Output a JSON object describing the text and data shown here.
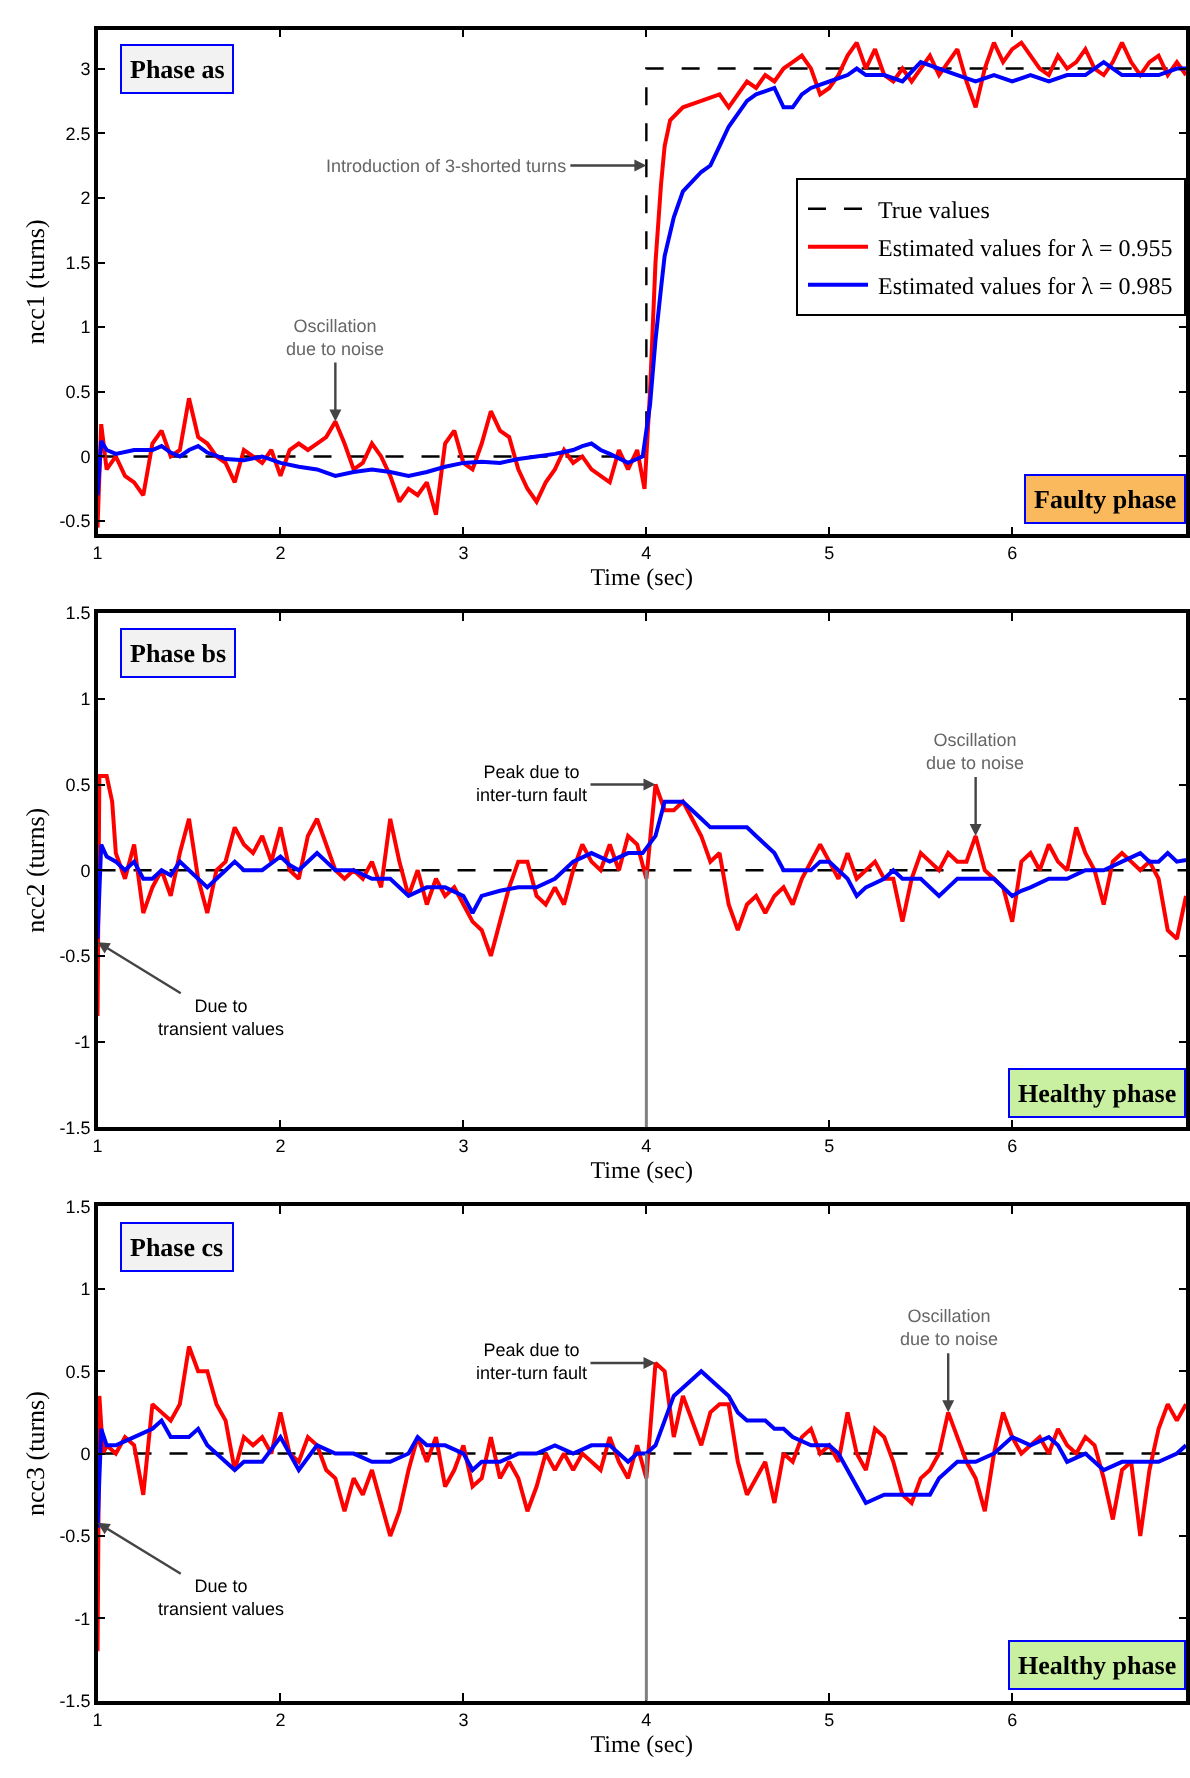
{
  "chart_data": [
    {
      "type": "line",
      "xlabel": "Time (sec)",
      "ylabel": "ncc1 (turns)",
      "xlim": [
        1,
        6.95
      ],
      "ylim": [
        -0.6,
        3.3
      ],
      "xticks": [
        1,
        2,
        3,
        4,
        5,
        6
      ],
      "yticks": [
        -0.5,
        0,
        0.5,
        1,
        1.5,
        2,
        2.5,
        3
      ],
      "legend": "right",
      "annotations": [
        "Phase as",
        "Faulty phase",
        {
          "text": "Introduction of 3-shorted turns",
          "x": 4,
          "y": 2.25
        },
        {
          "text": "Oscillation\ndue to noise",
          "x": 2.3,
          "y": 0.27
        }
      ],
      "series": [
        {
          "name": "True values",
          "color": "#000000",
          "line_style": "dashed",
          "x": [
            1,
            4,
            4,
            6.95
          ],
          "values": [
            0,
            0,
            3,
            3
          ]
        },
        {
          "name": "Estimated values for λ = 0.955",
          "color": "#ff0000",
          "line_style": "solid",
          "x": [
            1.0,
            1.02,
            1.05,
            1.1,
            1.15,
            1.2,
            1.25,
            1.3,
            1.35,
            1.4,
            1.45,
            1.5,
            1.55,
            1.6,
            1.65,
            1.7,
            1.75,
            1.8,
            1.85,
            1.9,
            1.95,
            2.0,
            2.05,
            2.1,
            2.15,
            2.2,
            2.25,
            2.3,
            2.35,
            2.4,
            2.45,
            2.5,
            2.55,
            2.6,
            2.65,
            2.7,
            2.75,
            2.8,
            2.85,
            2.9,
            2.95,
            3.0,
            3.05,
            3.1,
            3.15,
            3.2,
            3.25,
            3.3,
            3.35,
            3.4,
            3.45,
            3.5,
            3.55,
            3.6,
            3.65,
            3.7,
            3.75,
            3.8,
            3.85,
            3.9,
            3.95,
            3.99,
            4.02,
            4.05,
            4.08,
            4.1,
            4.13,
            4.2,
            4.3,
            4.4,
            4.45,
            4.5,
            4.55,
            4.6,
            4.65,
            4.7,
            4.75,
            4.8,
            4.85,
            4.9,
            4.95,
            5.0,
            5.05,
            5.1,
            5.15,
            5.2,
            5.25,
            5.3,
            5.35,
            5.4,
            5.45,
            5.5,
            5.55,
            5.6,
            5.65,
            5.7,
            5.75,
            5.8,
            5.85,
            5.9,
            5.95,
            6.0,
            6.05,
            6.1,
            6.15,
            6.2,
            6.25,
            6.3,
            6.35,
            6.4,
            6.45,
            6.5,
            6.55,
            6.6,
            6.65,
            6.7,
            6.75,
            6.8,
            6.85,
            6.9,
            6.95
          ],
          "values": [
            -0.55,
            0.25,
            -0.1,
            0.0,
            -0.15,
            -0.2,
            -0.3,
            0.1,
            0.2,
            0.0,
            0.05,
            0.45,
            0.15,
            0.1,
            0.0,
            -0.05,
            -0.2,
            0.05,
            0.0,
            -0.05,
            0.05,
            -0.15,
            0.05,
            0.1,
            0.05,
            0.1,
            0.15,
            0.27,
            0.1,
            -0.1,
            -0.05,
            0.1,
            0.0,
            -0.15,
            -0.35,
            -0.25,
            -0.3,
            -0.2,
            -0.45,
            0.1,
            0.2,
            -0.05,
            -0.1,
            0.1,
            0.35,
            0.2,
            0.15,
            -0.1,
            -0.25,
            -0.35,
            -0.2,
            -0.1,
            0.05,
            -0.05,
            0.0,
            -0.1,
            -0.15,
            -0.2,
            0.05,
            -0.1,
            0.05,
            -0.25,
            0.5,
            1.5,
            2.1,
            2.4,
            2.6,
            2.7,
            2.75,
            2.8,
            2.7,
            2.8,
            2.9,
            2.85,
            2.95,
            2.9,
            3.0,
            3.05,
            3.1,
            3.0,
            2.8,
            2.85,
            2.95,
            3.1,
            3.2,
            3.0,
            3.15,
            2.95,
            2.9,
            3.0,
            2.9,
            3.0,
            3.1,
            2.95,
            3.05,
            3.15,
            2.9,
            2.7,
            3.0,
            3.2,
            3.05,
            3.15,
            3.2,
            3.1,
            3.0,
            2.95,
            3.1,
            3.0,
            3.05,
            3.15,
            3.0,
            2.95,
            3.05,
            3.2,
            3.05,
            2.95,
            3.05,
            3.1,
            2.95,
            3.05,
            2.95
          ]
        },
        {
          "name": "Estimated values for λ = 0.985",
          "color": "#0000ff",
          "line_style": "solid",
          "x": [
            1.0,
            1.02,
            1.05,
            1.1,
            1.2,
            1.3,
            1.35,
            1.4,
            1.45,
            1.5,
            1.55,
            1.6,
            1.7,
            1.8,
            1.9,
            2.0,
            2.1,
            2.2,
            2.3,
            2.4,
            2.5,
            2.6,
            2.7,
            2.8,
            2.9,
            3.0,
            3.1,
            3.2,
            3.3,
            3.4,
            3.5,
            3.6,
            3.65,
            3.7,
            3.75,
            3.8,
            3.9,
            3.98,
            4.02,
            4.05,
            4.08,
            4.1,
            4.15,
            4.2,
            4.3,
            4.35,
            4.4,
            4.45,
            4.5,
            4.55,
            4.6,
            4.7,
            4.75,
            4.8,
            4.85,
            4.9,
            5.0,
            5.1,
            5.15,
            5.2,
            5.3,
            5.4,
            5.5,
            5.6,
            5.7,
            5.8,
            5.9,
            6.0,
            6.1,
            6.2,
            6.3,
            6.4,
            6.5,
            6.6,
            6.7,
            6.8,
            6.9,
            6.95
          ],
          "values": [
            -0.3,
            0.12,
            0.05,
            0.02,
            0.05,
            0.05,
            0.08,
            0.03,
            0.0,
            0.05,
            0.08,
            0.03,
            -0.02,
            -0.03,
            0.0,
            -0.05,
            -0.08,
            -0.1,
            -0.15,
            -0.12,
            -0.1,
            -0.12,
            -0.15,
            -0.12,
            -0.08,
            -0.05,
            -0.04,
            -0.05,
            -0.02,
            0.0,
            0.02,
            0.05,
            0.08,
            0.1,
            0.05,
            0.02,
            -0.05,
            0.0,
            0.4,
            0.9,
            1.3,
            1.55,
            1.85,
            2.05,
            2.2,
            2.25,
            2.4,
            2.55,
            2.65,
            2.75,
            2.8,
            2.85,
            2.7,
            2.7,
            2.8,
            2.85,
            2.9,
            2.95,
            3.0,
            2.95,
            2.95,
            2.9,
            3.05,
            3.0,
            2.95,
            2.9,
            2.95,
            2.9,
            2.95,
            2.9,
            2.95,
            2.95,
            3.05,
            2.95,
            2.95,
            2.95,
            3.0,
            3.0
          ]
        }
      ]
    },
    {
      "type": "line",
      "xlabel": "Time (sec)",
      "ylabel": "ncc2 (turns)",
      "xlim": [
        1,
        6.95
      ],
      "ylim": [
        -1.5,
        1.5
      ],
      "xticks": [
        1,
        2,
        3,
        4,
        5,
        6
      ],
      "yticks": [
        -1.5,
        -1,
        -0.5,
        0,
        0.5,
        1,
        1.5
      ],
      "legend": false,
      "annotations": [
        "Phase bs",
        "Healthy phase",
        {
          "text": "Peak due to\ninter-turn fault",
          "x": 4.05,
          "y": 0.5
        },
        {
          "text": "Oscillation\ndue to noise",
          "x": 5.8,
          "y": 0.2
        },
        {
          "text": "Due to\ntransient values",
          "x": 1,
          "y": -0.42
        }
      ],
      "ref_lines": [
        {
          "axis": "x",
          "value": 4,
          "color": "#808080"
        }
      ],
      "series": [
        {
          "color": "#000000",
          "line_style": "dashed",
          "x": [
            1,
            6.95
          ],
          "values": [
            0,
            0
          ]
        },
        {
          "color": "#ff0000",
          "line_style": "solid",
          "x": [
            1.0,
            1.01,
            1.05,
            1.08,
            1.1,
            1.15,
            1.2,
            1.25,
            1.3,
            1.35,
            1.4,
            1.45,
            1.5,
            1.55,
            1.6,
            1.65,
            1.7,
            1.75,
            1.8,
            1.85,
            1.9,
            1.95,
            2.0,
            2.05,
            2.1,
            2.15,
            2.2,
            2.25,
            2.3,
            2.35,
            2.4,
            2.45,
            2.5,
            2.55,
            2.6,
            2.65,
            2.7,
            2.75,
            2.8,
            2.85,
            2.9,
            2.95,
            3.0,
            3.05,
            3.1,
            3.15,
            3.2,
            3.25,
            3.3,
            3.35,
            3.4,
            3.45,
            3.5,
            3.55,
            3.6,
            3.65,
            3.7,
            3.75,
            3.8,
            3.85,
            3.9,
            3.95,
            4.0,
            4.05,
            4.1,
            4.15,
            4.2,
            4.25,
            4.3,
            4.35,
            4.4,
            4.45,
            4.5,
            4.55,
            4.6,
            4.65,
            4.7,
            4.75,
            4.8,
            4.85,
            4.9,
            4.95,
            5.0,
            5.05,
            5.1,
            5.15,
            5.2,
            5.25,
            5.3,
            5.35,
            5.4,
            5.45,
            5.5,
            5.55,
            5.6,
            5.65,
            5.7,
            5.75,
            5.8,
            5.85,
            5.9,
            5.95,
            6.0,
            6.05,
            6.1,
            6.15,
            6.2,
            6.25,
            6.3,
            6.35,
            6.4,
            6.45,
            6.5,
            6.55,
            6.6,
            6.65,
            6.7,
            6.75,
            6.8,
            6.85,
            6.9,
            6.95
          ],
          "values": [
            -0.85,
            0.55,
            0.55,
            0.4,
            0.1,
            -0.05,
            0.15,
            -0.25,
            -0.1,
            0.0,
            -0.15,
            0.1,
            0.3,
            -0.05,
            -0.25,
            0.0,
            0.05,
            0.25,
            0.15,
            0.1,
            0.2,
            0.05,
            0.25,
            0.0,
            -0.05,
            0.2,
            0.3,
            0.15,
            0.0,
            -0.05,
            0.0,
            -0.05,
            0.05,
            -0.1,
            0.3,
            0.05,
            -0.15,
            0.0,
            -0.2,
            -0.05,
            -0.15,
            -0.1,
            -0.2,
            -0.3,
            -0.35,
            -0.5,
            -0.3,
            -0.1,
            0.05,
            0.05,
            -0.15,
            -0.2,
            -0.1,
            -0.2,
            0.0,
            0.15,
            0.05,
            0.0,
            0.15,
            0.0,
            0.2,
            0.15,
            -0.05,
            0.5,
            0.35,
            0.35,
            0.4,
            0.3,
            0.2,
            0.05,
            0.1,
            -0.2,
            -0.35,
            -0.2,
            -0.15,
            -0.25,
            -0.15,
            -0.1,
            -0.2,
            -0.05,
            0.05,
            0.15,
            0.05,
            -0.05,
            0.1,
            -0.05,
            0.0,
            0.05,
            -0.05,
            -0.05,
            -0.3,
            -0.05,
            0.1,
            0.05,
            0.0,
            0.1,
            0.05,
            0.05,
            0.2,
            0.0,
            -0.05,
            -0.1,
            -0.3,
            0.05,
            0.1,
            0.0,
            0.15,
            0.05,
            0.0,
            0.25,
            0.1,
            0.0,
            -0.2,
            0.05,
            0.1,
            0.05,
            0.0,
            0.05,
            -0.05,
            -0.35,
            -0.4,
            -0.15
          ]
        },
        {
          "color": "#0000ff",
          "line_style": "solid",
          "x": [
            1.0,
            1.02,
            1.05,
            1.1,
            1.15,
            1.2,
            1.25,
            1.3,
            1.35,
            1.4,
            1.45,
            1.5,
            1.55,
            1.6,
            1.65,
            1.7,
            1.75,
            1.8,
            1.9,
            2.0,
            2.05,
            2.1,
            2.2,
            2.25,
            2.3,
            2.4,
            2.5,
            2.6,
            2.7,
            2.8,
            2.9,
            3.0,
            3.05,
            3.1,
            3.2,
            3.3,
            3.4,
            3.5,
            3.55,
            3.6,
            3.7,
            3.8,
            3.9,
            3.98,
            4.05,
            4.1,
            4.15,
            4.2,
            4.25,
            4.3,
            4.35,
            4.4,
            4.45,
            4.5,
            4.55,
            4.6,
            4.65,
            4.7,
            4.75,
            4.8,
            4.9,
            4.95,
            5.0,
            5.1,
            5.15,
            5.2,
            5.3,
            5.35,
            5.4,
            5.5,
            5.6,
            5.65,
            5.7,
            5.8,
            5.9,
            6.0,
            6.05,
            6.1,
            6.2,
            6.3,
            6.4,
            6.5,
            6.6,
            6.7,
            6.75,
            6.8,
            6.85,
            6.9,
            6.95
          ],
          "values": [
            -0.4,
            0.15,
            0.08,
            0.05,
            0.0,
            0.05,
            -0.05,
            -0.05,
            0.0,
            -0.03,
            0.05,
            0.0,
            -0.05,
            -0.1,
            -0.05,
            0.0,
            0.05,
            0.0,
            0.0,
            0.08,
            0.03,
            0.0,
            0.1,
            0.05,
            0.0,
            0.0,
            -0.05,
            -0.05,
            -0.15,
            -0.1,
            -0.1,
            -0.15,
            -0.25,
            -0.15,
            -0.12,
            -0.1,
            -0.1,
            -0.05,
            0.0,
            0.05,
            0.1,
            0.05,
            0.1,
            0.1,
            0.2,
            0.4,
            0.4,
            0.4,
            0.35,
            0.3,
            0.25,
            0.25,
            0.25,
            0.25,
            0.25,
            0.2,
            0.15,
            0.1,
            0.0,
            0.0,
            0.0,
            0.05,
            0.05,
            -0.05,
            -0.15,
            -0.1,
            -0.05,
            0.0,
            -0.05,
            -0.05,
            -0.15,
            -0.1,
            -0.05,
            -0.05,
            -0.05,
            -0.15,
            -0.12,
            -0.1,
            -0.05,
            -0.05,
            0.0,
            0.0,
            0.05,
            0.1,
            0.05,
            0.05,
            0.1,
            0.05,
            0.06
          ]
        }
      ]
    },
    {
      "type": "line",
      "xlabel": "Time (sec)",
      "ylabel": "ncc3 (turns)",
      "xlim": [
        1,
        6.95
      ],
      "ylim": [
        -1.5,
        1.5
      ],
      "xticks": [
        1,
        2,
        3,
        4,
        5,
        6
      ],
      "yticks": [
        -1.5,
        -1,
        -0.5,
        0,
        0.5,
        1,
        1.5
      ],
      "legend": false,
      "annotations": [
        "Phase cs",
        "Healthy phase",
        {
          "text": "Peak due to\ninter-turn fault",
          "x": 4.05,
          "y": 0.55
        },
        {
          "text": "Oscillation\ndue to noise",
          "x": 5.65,
          "y": 0.25
        },
        {
          "text": "Due to\ntransient values",
          "x": 1,
          "y": -0.42
        }
      ],
      "ref_lines": [
        {
          "axis": "x",
          "value": 4,
          "color": "#808080"
        }
      ],
      "series": [
        {
          "color": "#000000",
          "line_style": "dashed",
          "x": [
            1,
            6.95
          ],
          "values": [
            0,
            0
          ]
        },
        {
          "color": "#ff0000",
          "line_style": "solid",
          "x": [
            1.0,
            1.01,
            1.03,
            1.05,
            1.1,
            1.15,
            1.2,
            1.25,
            1.3,
            1.35,
            1.4,
            1.45,
            1.5,
            1.55,
            1.6,
            1.65,
            1.7,
            1.75,
            1.8,
            1.85,
            1.9,
            1.95,
            2.0,
            2.05,
            2.1,
            2.15,
            2.2,
            2.25,
            2.3,
            2.35,
            2.4,
            2.45,
            2.5,
            2.55,
            2.6,
            2.65,
            2.7,
            2.75,
            2.8,
            2.85,
            2.9,
            2.95,
            3.0,
            3.05,
            3.1,
            3.15,
            3.2,
            3.25,
            3.3,
            3.35,
            3.4,
            3.45,
            3.5,
            3.55,
            3.6,
            3.65,
            3.7,
            3.75,
            3.8,
            3.85,
            3.9,
            3.95,
            4.0,
            4.05,
            4.1,
            4.15,
            4.2,
            4.25,
            4.3,
            4.35,
            4.4,
            4.45,
            4.5,
            4.55,
            4.6,
            4.65,
            4.7,
            4.75,
            4.8,
            4.85,
            4.9,
            4.95,
            5.0,
            5.05,
            5.1,
            5.15,
            5.2,
            5.25,
            5.3,
            5.35,
            5.4,
            5.45,
            5.5,
            5.55,
            5.6,
            5.65,
            5.7,
            5.75,
            5.8,
            5.85,
            5.9,
            5.95,
            6.0,
            6.05,
            6.1,
            6.15,
            6.2,
            6.25,
            6.3,
            6.35,
            6.4,
            6.45,
            6.5,
            6.55,
            6.6,
            6.65,
            6.7,
            6.75,
            6.8,
            6.85,
            6.9,
            6.95
          ],
          "values": [
            -1.2,
            0.35,
            0.0,
            0.05,
            0.0,
            0.1,
            0.05,
            -0.25,
            0.3,
            0.25,
            0.2,
            0.3,
            0.65,
            0.5,
            0.5,
            0.3,
            0.2,
            -0.1,
            0.1,
            0.05,
            0.1,
            0.0,
            0.25,
            0.0,
            -0.05,
            0.1,
            0.05,
            -0.1,
            -0.15,
            -0.35,
            -0.15,
            -0.25,
            -0.1,
            -0.3,
            -0.5,
            -0.35,
            -0.1,
            0.1,
            -0.05,
            0.1,
            -0.2,
            -0.1,
            0.05,
            -0.2,
            -0.15,
            0.1,
            -0.15,
            -0.05,
            -0.15,
            -0.35,
            -0.2,
            0.0,
            -0.1,
            0.0,
            -0.1,
            0.0,
            -0.05,
            -0.1,
            0.1,
            -0.05,
            -0.15,
            0.05,
            -0.15,
            0.55,
            0.5,
            0.1,
            0.35,
            0.2,
            0.05,
            0.25,
            0.3,
            0.3,
            -0.05,
            -0.25,
            -0.15,
            -0.05,
            -0.3,
            0.0,
            -0.05,
            0.1,
            0.15,
            0.0,
            0.05,
            -0.05,
            0.25,
            0.0,
            -0.1,
            0.15,
            0.1,
            -0.05,
            -0.25,
            -0.3,
            -0.15,
            -0.1,
            0.0,
            0.25,
            0.1,
            -0.05,
            -0.15,
            -0.35,
            0.0,
            0.25,
            0.1,
            0.0,
            0.05,
            0.1,
            0.0,
            0.15,
            0.05,
            0.0,
            0.1,
            0.05,
            -0.15,
            -0.4,
            -0.1,
            -0.05,
            -0.5,
            -0.1,
            0.15,
            0.3,
            0.2,
            0.3
          ]
        },
        {
          "color": "#0000ff",
          "line_style": "solid",
          "x": [
            1.0,
            1.02,
            1.05,
            1.1,
            1.2,
            1.3,
            1.35,
            1.4,
            1.45,
            1.5,
            1.55,
            1.6,
            1.65,
            1.7,
            1.75,
            1.8,
            1.9,
            2.0,
            2.05,
            2.1,
            2.2,
            2.3,
            2.4,
            2.5,
            2.6,
            2.7,
            2.75,
            2.8,
            2.9,
            3.0,
            3.05,
            3.1,
            3.2,
            3.3,
            3.4,
            3.5,
            3.6,
            3.7,
            3.8,
            3.9,
            3.95,
            4.0,
            4.05,
            4.1,
            4.15,
            4.2,
            4.25,
            4.3,
            4.35,
            4.4,
            4.45,
            4.5,
            4.55,
            4.6,
            4.65,
            4.7,
            4.75,
            4.8,
            4.9,
            5.0,
            5.05,
            5.1,
            5.15,
            5.2,
            5.3,
            5.4,
            5.5,
            5.55,
            5.6,
            5.7,
            5.8,
            5.9,
            6.0,
            6.1,
            6.2,
            6.25,
            6.3,
            6.4,
            6.5,
            6.6,
            6.7,
            6.8,
            6.9,
            6.95
          ],
          "values": [
            -0.45,
            0.15,
            0.05,
            0.05,
            0.1,
            0.15,
            0.2,
            0.1,
            0.1,
            0.1,
            0.15,
            0.05,
            0.0,
            -0.05,
            -0.1,
            -0.05,
            -0.05,
            0.1,
            0.0,
            -0.1,
            0.05,
            0.0,
            0.0,
            -0.05,
            -0.05,
            0.0,
            0.1,
            0.05,
            0.05,
            0.0,
            -0.1,
            -0.05,
            -0.05,
            0.0,
            0.0,
            0.05,
            0.0,
            0.05,
            0.05,
            -0.05,
            0.0,
            0.0,
            0.05,
            0.2,
            0.35,
            0.4,
            0.45,
            0.5,
            0.45,
            0.4,
            0.35,
            0.25,
            0.2,
            0.2,
            0.2,
            0.15,
            0.15,
            0.1,
            0.05,
            0.05,
            0.0,
            -0.1,
            -0.2,
            -0.3,
            -0.25,
            -0.25,
            -0.25,
            -0.25,
            -0.15,
            -0.05,
            -0.05,
            0.0,
            0.1,
            0.05,
            0.1,
            0.05,
            -0.05,
            0.0,
            -0.1,
            -0.05,
            -0.05,
            -0.05,
            0.0,
            0.05
          ]
        }
      ]
    }
  ]
}
